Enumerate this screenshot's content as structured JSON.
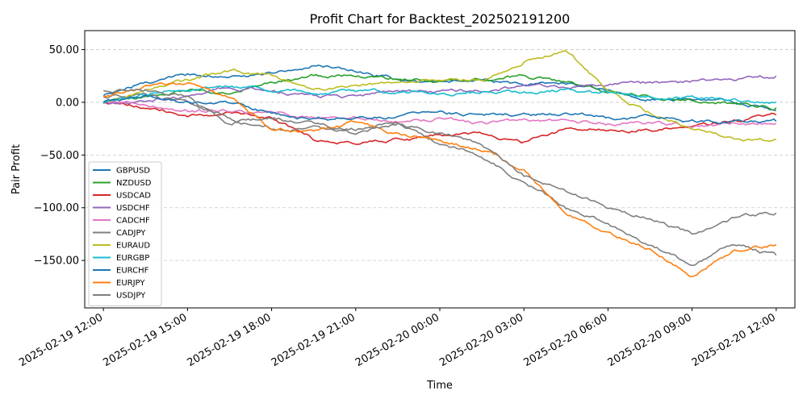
{
  "chart_data": {
    "type": "line",
    "title": "Profit Chart for Backtest_202502191200",
    "xlabel": "Time",
    "ylabel": "Pair Profit",
    "xlim": [
      "2025-02-19 11:20",
      "2025-02-20 12:40"
    ],
    "ylim": [
      -195,
      68
    ],
    "y_ticks": [
      50,
      0,
      -50,
      -100,
      -150
    ],
    "y_tick_labels": [
      "50.00",
      "0.00",
      "−50.00",
      "−100.00",
      "−150.00"
    ],
    "x_ticks": [
      "2025-02-19 12:00",
      "2025-02-19 15:00",
      "2025-02-19 18:00",
      "2025-02-19 21:00",
      "2025-02-20 00:00",
      "2025-02-20 03:00",
      "2025-02-20 06:00",
      "2025-02-20 09:00",
      "2025-02-20 12:00"
    ],
    "x_tick_labels": [
      "2025-02-19 12:00",
      "2025-02-19 15:00",
      "2025-02-19 18:00",
      "2025-02-19 21:00",
      "2025-02-20 00:00",
      "2025-02-20 03:00",
      "2025-02-20 06:00",
      "2025-02-20 09:00",
      "2025-02-20 12:00"
    ],
    "grid": "y-dashed",
    "legend_position": "lower-left",
    "x": [
      "2025-02-19 12:00",
      "2025-02-19 13:30",
      "2025-02-19 15:00",
      "2025-02-19 16:30",
      "2025-02-19 18:00",
      "2025-02-19 19:30",
      "2025-02-19 21:00",
      "2025-02-19 22:30",
      "2025-02-20 00:00",
      "2025-02-20 01:30",
      "2025-02-20 03:00",
      "2025-02-20 04:30",
      "2025-02-20 06:00",
      "2025-02-20 07:30",
      "2025-02-20 09:00",
      "2025-02-20 10:30",
      "2025-02-20 12:00"
    ],
    "series": [
      {
        "name": "GBPUSD",
        "color": "#1f77b4",
        "values": [
          5,
          20,
          26,
          25,
          28,
          36,
          30,
          22,
          20,
          20,
          15,
          18,
          12,
          3,
          3,
          0,
          -8
        ]
      },
      {
        "name": "NZDUSD",
        "color": "#2ca02c",
        "values": [
          0,
          5,
          12,
          10,
          18,
          25,
          25,
          22,
          20,
          22,
          25,
          20,
          10,
          5,
          3,
          0,
          -5
        ]
      },
      {
        "name": "USDCAD",
        "color": "#d62728",
        "values": [
          0,
          -5,
          -12,
          -10,
          -15,
          -35,
          -38,
          -35,
          -32,
          -30,
          -38,
          -25,
          -25,
          -25,
          -25,
          -18,
          -12
        ]
      },
      {
        "name": "USDCHF",
        "color": "#9467bd",
        "values": [
          0,
          2,
          5,
          15,
          10,
          5,
          5,
          10,
          10,
          10,
          15,
          15,
          15,
          18,
          20,
          22,
          25
        ]
      },
      {
        "name": "CADCHF",
        "color": "#e377c2",
        "values": [
          0,
          -2,
          -8,
          -8,
          -10,
          -15,
          -15,
          -18,
          -15,
          -20,
          -18,
          -18,
          -20,
          -20,
          -22,
          -20,
          -20
        ]
      },
      {
        "name": "CADJPY",
        "color": "#7f7f7f",
        "values": [
          5,
          8,
          0,
          -15,
          -25,
          -25,
          -25,
          -20,
          -40,
          -50,
          -75,
          -100,
          -115,
          -135,
          -155,
          -135,
          -145
        ]
      },
      {
        "name": "EURAUD",
        "color": "#bcbd22",
        "values": [
          0,
          10,
          20,
          30,
          25,
          10,
          15,
          20,
          20,
          22,
          40,
          50,
          10,
          -10,
          -25,
          -35,
          -35
        ]
      },
      {
        "name": "EURGBP",
        "color": "#17becf",
        "values": [
          0,
          8,
          12,
          15,
          12,
          8,
          10,
          10,
          8,
          10,
          10,
          12,
          8,
          5,
          5,
          2,
          0
        ]
      },
      {
        "name": "EURCHF",
        "color": "#1f77b4",
        "values": [
          0,
          5,
          0,
          0,
          -10,
          -15,
          -15,
          -12,
          -10,
          -12,
          -12,
          -12,
          -15,
          -15,
          -18,
          -18,
          -18
        ]
      },
      {
        "name": "EURJPY",
        "color": "#ff7f0e",
        "values": [
          5,
          15,
          18,
          5,
          -25,
          -30,
          -20,
          -30,
          -35,
          -45,
          -65,
          -105,
          -125,
          -140,
          -165,
          -140,
          -135
        ]
      },
      {
        "name": "USDJPY",
        "color": "#7f7f7f",
        "values": [
          10,
          12,
          5,
          -20,
          -15,
          -20,
          -30,
          -20,
          -30,
          -40,
          -70,
          -85,
          -100,
          -110,
          -125,
          -110,
          -105
        ]
      }
    ]
  }
}
